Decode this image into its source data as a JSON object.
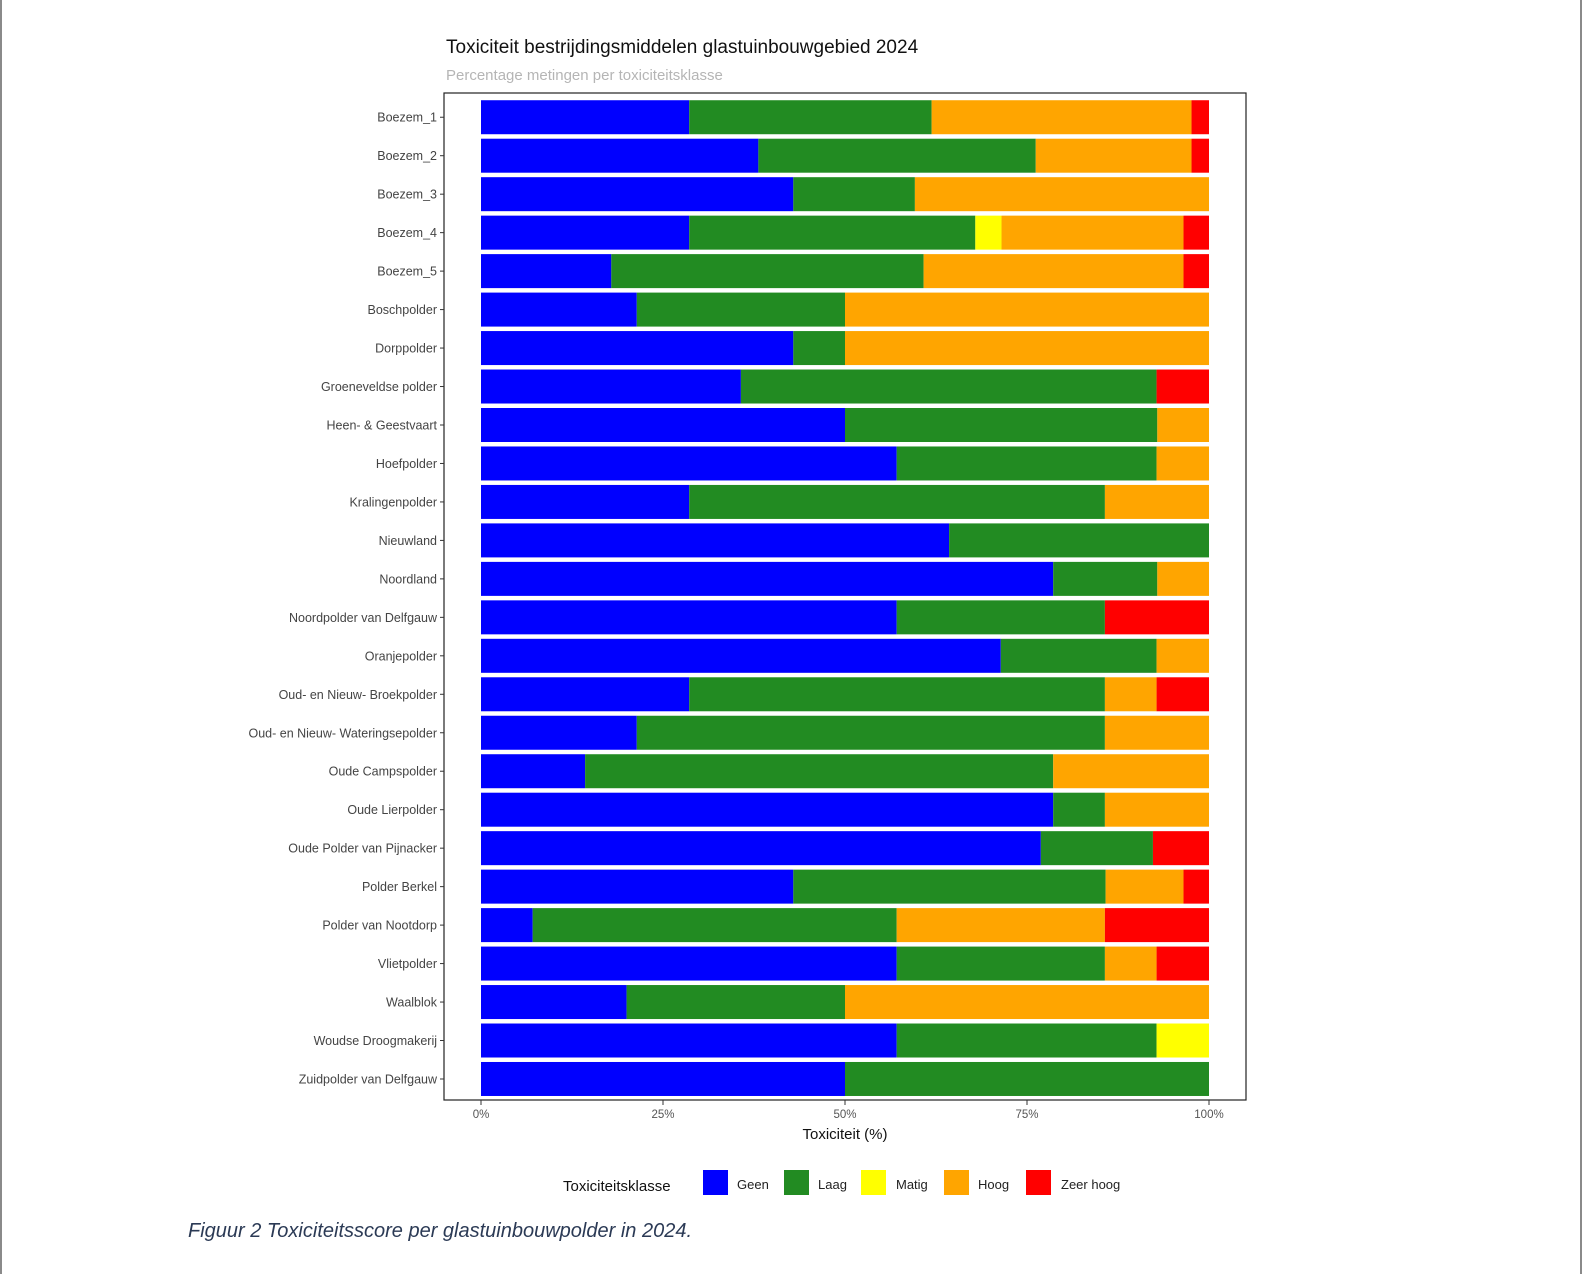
{
  "chart_data": {
    "type": "bar",
    "orientation": "horizontal",
    "stacked": true,
    "title": "Toxiciteit bestrijdingsmiddelen glastuinbouwgebied 2024",
    "subtitle": "Percentage metingen per toxiciteitsklasse",
    "xlabel": "Toxiciteit (%)",
    "ylabel": "",
    "xlim": [
      0,
      100
    ],
    "x_ticks": [
      0,
      25,
      50,
      75,
      100
    ],
    "x_tick_labels": [
      "0%",
      "25%",
      "50%",
      "75%",
      "100%"
    ],
    "legend_title": "Toxiciteitsklasse",
    "legend_position": "bottom",
    "categories": [
      "Boezem_1",
      "Boezem_2",
      "Boezem_3",
      "Boezem_4",
      "Boezem_5",
      "Boschpolder",
      "Dorppolder",
      "Groeneveldse polder",
      "Heen- & Geestvaart",
      "Hoefpolder",
      "Kralingenpolder",
      "Nieuwland",
      "Noordland",
      "Noordpolder van Delfgauw",
      "Oranjepolder",
      "Oud- en Nieuw- Broekpolder",
      "Oud- en Nieuw- Wateringsepolder",
      "Oude Campspolder",
      "Oude Lierpolder",
      "Oude Polder van Pijnacker",
      "Polder Berkel",
      "Polder van Nootdorp",
      "Vlietpolder",
      "Waalblok",
      "Woudse Droogmakerij",
      "Zuidpolder van Delfgauw"
    ],
    "series": [
      {
        "name": "Geen",
        "color": "#0000FF",
        "values": [
          28.6,
          38.1,
          42.9,
          28.6,
          17.9,
          21.4,
          42.9,
          35.7,
          50.0,
          57.1,
          28.6,
          64.3,
          78.6,
          57.1,
          71.4,
          28.6,
          21.4,
          14.3,
          78.6,
          76.9,
          42.9,
          7.1,
          57.1,
          20.0,
          57.1,
          50.0
        ]
      },
      {
        "name": "Laag",
        "color": "#228B22",
        "values": [
          33.3,
          38.1,
          16.7,
          39.3,
          42.9,
          28.6,
          7.1,
          57.1,
          42.9,
          35.7,
          57.1,
          35.7,
          14.3,
          28.6,
          21.4,
          57.1,
          64.3,
          64.3,
          7.1,
          15.4,
          42.9,
          50.0,
          28.6,
          30.0,
          35.7,
          50.0
        ]
      },
      {
        "name": "Matig",
        "color": "#FFFF00",
        "values": [
          0,
          0,
          0,
          3.6,
          0,
          0,
          0,
          0,
          0,
          0,
          0,
          0,
          0,
          0,
          0,
          0,
          0,
          0,
          0,
          0,
          0,
          0,
          0,
          0,
          7.2,
          0
        ]
      },
      {
        "name": "Hoog",
        "color": "#FFA500",
        "values": [
          35.7,
          21.4,
          40.4,
          25.0,
          35.7,
          50.0,
          50.0,
          0,
          7.1,
          7.2,
          14.3,
          0,
          7.1,
          0,
          7.2,
          7.1,
          14.3,
          21.4,
          14.3,
          0,
          10.7,
          28.6,
          7.1,
          50.0,
          0,
          0
        ]
      },
      {
        "name": "Zeer hoog",
        "color": "#FF0000",
        "values": [
          2.4,
          2.4,
          0,
          3.5,
          3.5,
          0,
          0,
          7.2,
          0,
          0,
          0,
          0,
          0,
          14.3,
          0,
          7.2,
          0,
          0,
          0,
          7.7,
          3.5,
          14.3,
          7.2,
          0,
          0,
          0
        ]
      }
    ]
  },
  "caption": "Figuur 2 Toxiciteitsscore per glastuinbouwpolder in 2024."
}
